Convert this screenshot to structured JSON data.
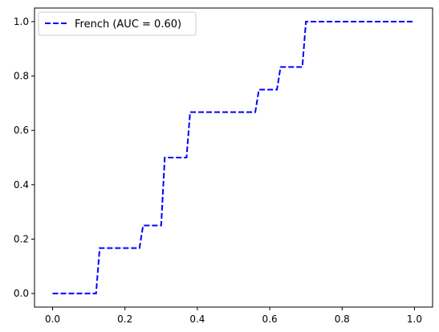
{
  "chart_data": {
    "type": "line",
    "title": "",
    "xlabel": "",
    "ylabel": "",
    "xlim": [
      -0.05,
      1.05
    ],
    "ylim": [
      -0.05,
      1.05
    ],
    "xticks": [
      0.0,
      0.2,
      0.4,
      0.6,
      0.8,
      1.0
    ],
    "xtick_labels": [
      "0.0",
      "0.2",
      "0.4",
      "0.6",
      "0.8",
      "1.0"
    ],
    "yticks": [
      0.0,
      0.2,
      0.4,
      0.6,
      0.8,
      1.0
    ],
    "ytick_labels": [
      "0.0",
      "0.2",
      "0.4",
      "0.6",
      "0.8",
      "1.0"
    ],
    "grid": false,
    "legend_position": "top-left",
    "series": [
      {
        "name": "French (AUC = 0.60)",
        "color": "#0000ff",
        "line_style": "dashed",
        "x": [
          0.0,
          0.12,
          0.13,
          0.24,
          0.25,
          0.3,
          0.31,
          0.37,
          0.38,
          0.56,
          0.57,
          0.62,
          0.63,
          0.69,
          0.7,
          1.0
        ],
        "y": [
          0.0,
          0.0,
          0.167,
          0.167,
          0.25,
          0.25,
          0.5,
          0.5,
          0.667,
          0.667,
          0.75,
          0.75,
          0.833,
          0.833,
          1.0,
          1.0
        ]
      }
    ]
  }
}
